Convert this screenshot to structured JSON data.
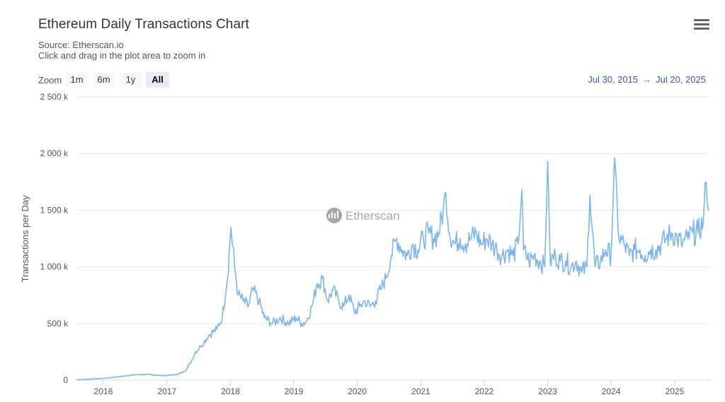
{
  "header": {
    "title": "Ethereum Daily Transactions Chart",
    "source": "Source: Etherscan.io",
    "hint": "Click and drag in the plot area to zoom in"
  },
  "toolbar": {
    "zoom_label": "Zoom",
    "buttons": [
      "1m",
      "6m",
      "1y",
      "All"
    ],
    "active": "All",
    "range_from": "Jul 30, 2015",
    "range_arrow": "→",
    "range_to": "Jul 20, 2025",
    "menu_icon": "hamburger-menu-icon"
  },
  "watermark": {
    "text": "Etherscan",
    "icon": "etherscan-logo-icon"
  },
  "colors": {
    "line": "#7cb5ec",
    "grid": "#e6e6e6",
    "range": "#335cad"
  },
  "chart_data": {
    "type": "line",
    "title": "Ethereum Daily Transactions Chart",
    "ylabel": "Transactions per Day",
    "xlabel": "",
    "ylim": [
      0,
      2500000
    ],
    "y_ticks": [
      0,
      500000,
      1000000,
      1500000,
      2000000,
      2500000
    ],
    "y_tick_labels": [
      "0",
      "500 k",
      "1 000 k",
      "1 500 k",
      "2 000 k",
      "2 500 k"
    ],
    "x_tick_labels": [
      "2016",
      "2017",
      "2018",
      "2019",
      "2020",
      "2021",
      "2022",
      "2023",
      "2024",
      "2025"
    ],
    "x_range": [
      "2015-07-30",
      "2025-07-20"
    ],
    "grid": true,
    "legend": "none",
    "series": [
      {
        "x": [
          "2015-07-30",
          "2015-10-01",
          "2016-01-01",
          "2016-04-01",
          "2016-06-15",
          "2016-09-01",
          "2016-12-01",
          "2017-01-01",
          "2017-03-01",
          "2017-04-15",
          "2017-05-15",
          "2017-06-15",
          "2017-07-15",
          "2017-09-01",
          "2017-10-15",
          "2017-11-15",
          "2017-12-15",
          "2018-01-04",
          "2018-01-25",
          "2018-02-15",
          "2018-03-15",
          "2018-04-15",
          "2018-05-10",
          "2018-06-15",
          "2018-07-15",
          "2018-09-01",
          "2018-10-15",
          "2018-12-01",
          "2019-01-15",
          "2019-02-15",
          "2019-03-15",
          "2019-04-15",
          "2019-05-15",
          "2019-06-15",
          "2019-07-15",
          "2019-08-15",
          "2019-09-15",
          "2019-10-15",
          "2019-11-15",
          "2019-12-15",
          "2020-01-15",
          "2020-02-15",
          "2020-03-15",
          "2020-04-15",
          "2020-05-15",
          "2020-06-15",
          "2020-07-15",
          "2020-08-15",
          "2020-09-15",
          "2020-10-15",
          "2020-11-15",
          "2020-12-15",
          "2021-01-15",
          "2021-02-15",
          "2021-03-15",
          "2021-04-15",
          "2021-05-10",
          "2021-05-25",
          "2021-06-15",
          "2021-07-15",
          "2021-08-15",
          "2021-09-15",
          "2021-10-15",
          "2021-11-15",
          "2021-12-15",
          "2022-01-15",
          "2022-02-15",
          "2022-03-15",
          "2022-04-15",
          "2022-05-15",
          "2022-06-15",
          "2022-07-15",
          "2022-08-05",
          "2022-08-15",
          "2022-09-15",
          "2022-10-15",
          "2022-11-15",
          "2022-12-15",
          "2023-01-01",
          "2023-01-15",
          "2023-02-15",
          "2023-03-15",
          "2023-04-15",
          "2023-05-15",
          "2023-06-15",
          "2023-07-15",
          "2023-08-15",
          "2023-09-01",
          "2023-10-01",
          "2023-11-01",
          "2023-12-01",
          "2024-01-01",
          "2024-01-20",
          "2024-02-15",
          "2024-03-15",
          "2024-04-15",
          "2024-05-15",
          "2024-06-15",
          "2024-07-15",
          "2024-08-15",
          "2024-09-15",
          "2024-10-15",
          "2024-11-15",
          "2024-12-15",
          "2025-01-15",
          "2025-02-15",
          "2025-03-15",
          "2025-04-15",
          "2025-05-15",
          "2025-06-15",
          "2025-07-01",
          "2025-07-20"
        ],
        "values": [
          2000,
          8000,
          15000,
          30000,
          45000,
          50000,
          40000,
          42000,
          50000,
          80000,
          150000,
          250000,
          300000,
          400000,
          450000,
          550000,
          900000,
          1349000,
          1000000,
          750000,
          700000,
          650000,
          800000,
          700000,
          550000,
          500000,
          550000,
          500000,
          550000,
          500000,
          520000,
          650000,
          850000,
          900000,
          700000,
          800000,
          700000,
          650000,
          750000,
          600000,
          650000,
          700000,
          650000,
          700000,
          800000,
          900000,
          1100000,
          1250000,
          1150000,
          1100000,
          1200000,
          1150000,
          1250000,
          1300000,
          1250000,
          1300000,
          1500000,
          1650000,
          1300000,
          1200000,
          1250000,
          1200000,
          1250000,
          1300000,
          1200000,
          1250000,
          1200000,
          1150000,
          1100000,
          1150000,
          1100000,
          1200000,
          1680000,
          1150000,
          1050000,
          1100000,
          1050000,
          1000000,
          1930000,
          1050000,
          1100000,
          1050000,
          1050000,
          1000000,
          1050000,
          950000,
          1000000,
          1630000,
          1000000,
          1050000,
          1150000,
          1100000,
          1960000,
          1250000,
          1200000,
          1100000,
          1150000,
          1150000,
          1100000,
          1150000,
          1150000,
          1200000,
          1250000,
          1300000,
          1250000,
          1200000,
          1250000,
          1300000,
          1300000,
          1400000,
          1750000,
          1500000
        ]
      }
    ]
  }
}
